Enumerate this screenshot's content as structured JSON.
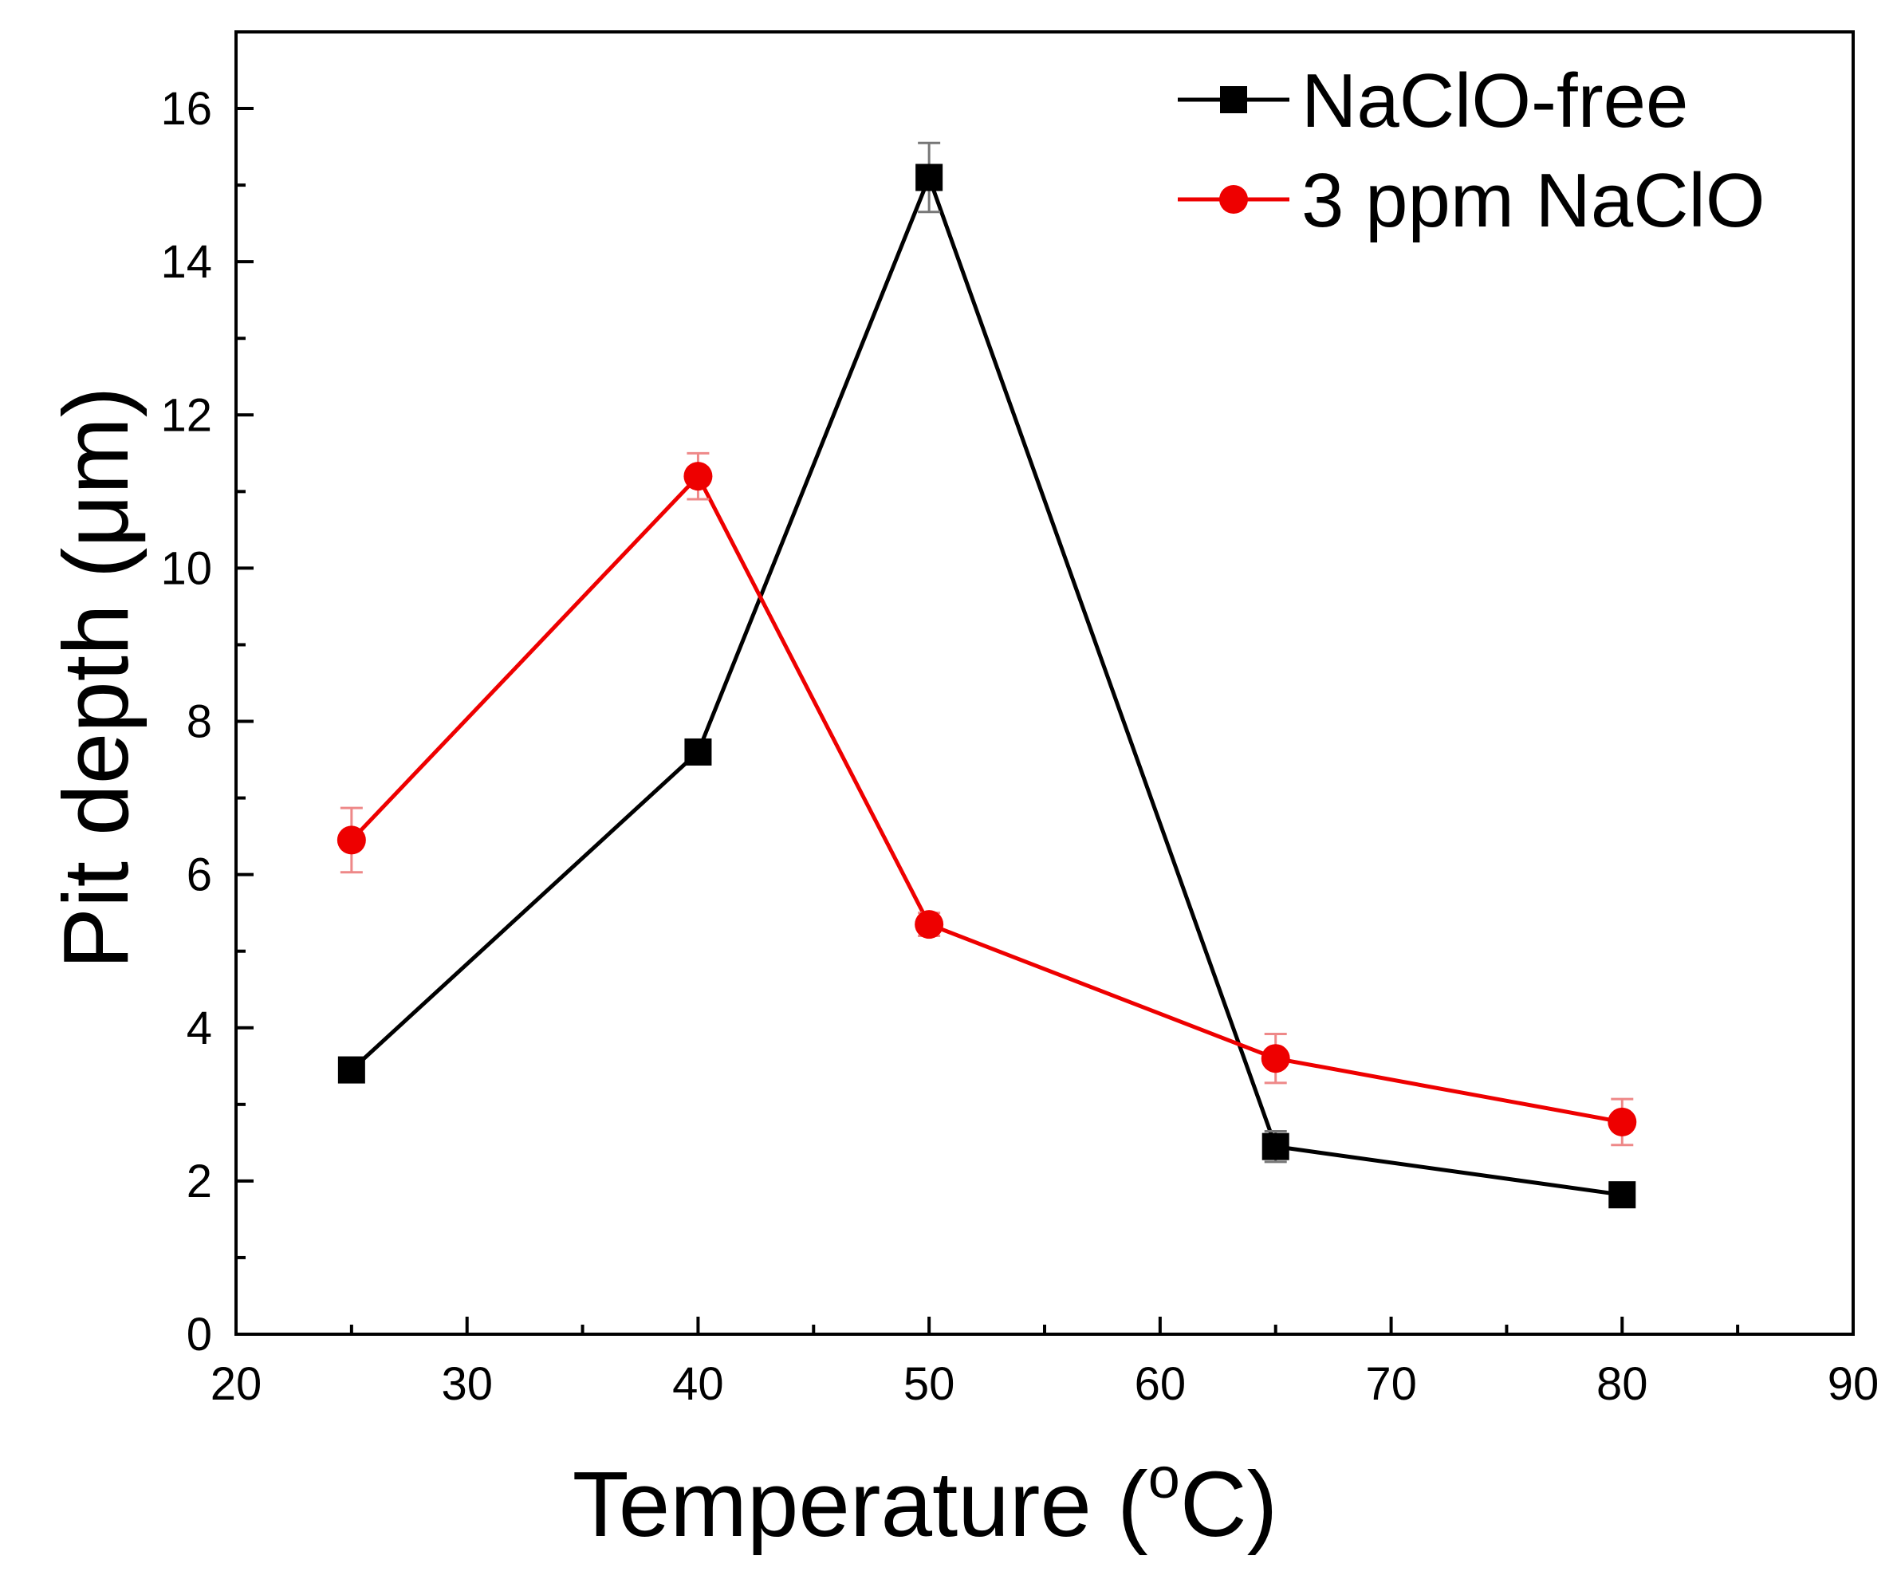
{
  "chart_data": {
    "type": "line",
    "title": "",
    "xlabel": "Temperature",
    "xlabel_unit_base": "C",
    "xlabel_unit_superscript": "o",
    "ylabel": "Pit depth (μm)",
    "xlim": [
      20,
      90
    ],
    "ylim": [
      0,
      17
    ],
    "x_ticks": [
      20,
      30,
      40,
      50,
      60,
      70,
      80,
      90
    ],
    "y_ticks": [
      0,
      2,
      4,
      6,
      8,
      10,
      12,
      14,
      16
    ],
    "grid": false,
    "legend_position": "top-right",
    "series": [
      {
        "name": "NaClO-free",
        "color": "#000000",
        "marker": "square",
        "x": [
          25,
          40,
          50,
          65,
          80
        ],
        "y": [
          3.45,
          7.6,
          15.1,
          2.45,
          1.82
        ],
        "error": [
          0.1,
          0.12,
          0.45,
          0.2,
          0.08
        ]
      },
      {
        "name": "3 ppm NaClO",
        "color": "#ee0000",
        "marker": "circle",
        "x": [
          25,
          40,
          50,
          65,
          80
        ],
        "y": [
          6.45,
          11.2,
          5.35,
          3.6,
          2.77
        ],
        "error": [
          0.42,
          0.3,
          0.15,
          0.32,
          0.3
        ]
      }
    ]
  }
}
